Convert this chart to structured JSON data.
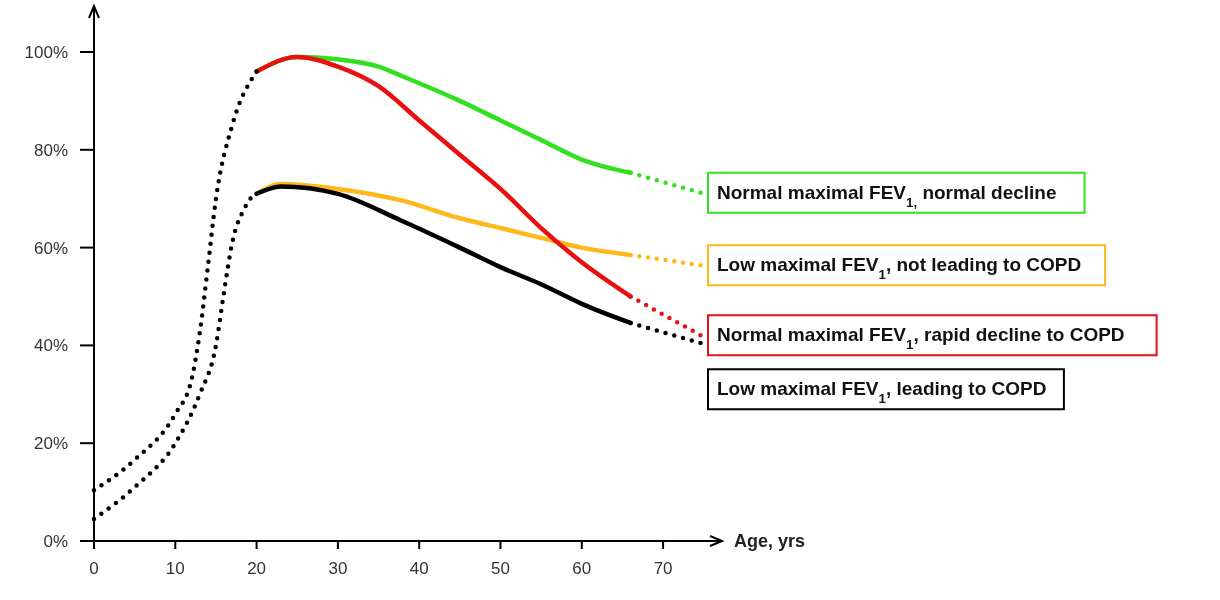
{
  "chart_data": {
    "type": "line",
    "xlabel": "Age, yrs",
    "xlim": [
      0,
      77
    ],
    "ylim": [
      0,
      109
    ],
    "xticks": [
      0,
      10,
      20,
      30,
      40,
      50,
      60,
      70
    ],
    "yticks": [
      {
        "value": 0,
        "label": "0%"
      },
      {
        "value": 20,
        "label": "20%"
      },
      {
        "value": 40,
        "label": "40%"
      },
      {
        "value": 60,
        "label": "60%"
      },
      {
        "value": 80,
        "label": "80%"
      },
      {
        "value": 100,
        "label": "100%"
      }
    ],
    "series": [
      {
        "color": "#000000",
        "line_style": "dotted",
        "x": [
          0,
          5,
          10,
          12,
          13,
          14,
          15,
          17,
          20
        ],
        "values": [
          10.4,
          16.6,
          26,
          33,
          42.5,
          56,
          70,
          85,
          96
        ]
      },
      {
        "color": "#000000",
        "line_style": "dotted",
        "x": [
          0,
          5,
          10,
          13,
          15,
          16,
          17,
          18.5,
          20
        ],
        "values": [
          4.5,
          11,
          20,
          30,
          40,
          51,
          61,
          68,
          71.4
        ]
      },
      {
        "name": "Normal maximal FEV$_{1,}$ normal decline",
        "color": "#33e01f",
        "line_style": "solid",
        "x": [
          20,
          25,
          30,
          35,
          38,
          45,
          50,
          55,
          60,
          66
        ],
        "values": [
          96,
          99,
          98.5,
          97,
          95,
          90,
          86,
          82,
          78,
          75.3
        ]
      },
      {
        "color": "#33e01f",
        "line_style": "dotted",
        "x": [
          66,
          74.6
        ],
        "values": [
          75.3,
          71.2
        ]
      },
      {
        "name": "Low maximal FEV$_{1}$, not leading to COPD",
        "color": "#ffb81c",
        "line_style": "solid",
        "x": [
          20,
          23,
          30,
          37.7,
          45,
          50,
          55,
          60,
          66
        ],
        "values": [
          71,
          73,
          72,
          69.7,
          66,
          64,
          62,
          60,
          58.5
        ]
      },
      {
        "color": "#ffb81c",
        "line_style": "dotted",
        "x": [
          66,
          74.6
        ],
        "values": [
          58.5,
          56.4
        ]
      },
      {
        "name": "Normal maximal FEV$_{1}$, rapid decline to COPD",
        "color": "#e81010",
        "line_style": "solid",
        "x": [
          20,
          25,
          30,
          35,
          40,
          45,
          50,
          55,
          60,
          66
        ],
        "values": [
          96,
          99,
          97,
          93,
          86,
          79,
          72,
          64,
          57,
          50
        ]
      },
      {
        "color": "#e81010",
        "line_style": "dotted",
        "x": [
          66,
          74.6
        ],
        "values": [
          50,
          42.1
        ]
      },
      {
        "name": "Low maximal FEV$_{1}$, leading to COPD",
        "color": "#000000",
        "line_style": "solid",
        "x": [
          20,
          23,
          30,
          37.7,
          45,
          50,
          55,
          60,
          66
        ],
        "values": [
          71,
          72.5,
          71,
          65.6,
          60,
          56,
          52.5,
          48.5,
          44.6
        ]
      },
      {
        "color": "#000000",
        "line_style": "dotted",
        "x": [
          66,
          74.6
        ],
        "values": [
          44.6,
          40.5
        ]
      }
    ]
  }
}
